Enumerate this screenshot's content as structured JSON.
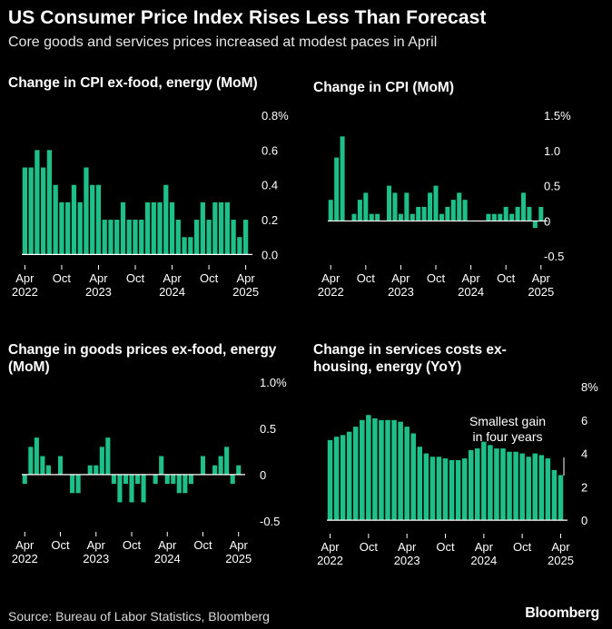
{
  "header": {
    "title": "US Consumer Price Index Rises Less Than Forecast",
    "subtitle": "Core goods and services prices increased at modest paces in April"
  },
  "footer": {
    "source": "Source: Bureau of Labor Statistics, Bloomberg",
    "brand": "Bloomberg"
  },
  "colors": {
    "bar": "#1ec089",
    "background": "#000000",
    "text": "#ffffff",
    "tick": "#ffffff"
  },
  "x_tick_labels": [
    {
      "index": 0,
      "top": "Apr",
      "bottom": "2022"
    },
    {
      "index": 6,
      "top": "Oct",
      "bottom": ""
    },
    {
      "index": 12,
      "top": "Apr",
      "bottom": "2023"
    },
    {
      "index": 18,
      "top": "Oct",
      "bottom": ""
    },
    {
      "index": 24,
      "top": "Apr",
      "bottom": "2024"
    },
    {
      "index": 30,
      "top": "Oct",
      "bottom": ""
    },
    {
      "index": 36,
      "top": "Apr",
      "bottom": "2025"
    }
  ],
  "chart_data": [
    {
      "id": "core-cpi",
      "type": "bar",
      "title": "Change in CPI ex-food, energy (MoM)",
      "categories_start": "2022-04",
      "categories_end": "2025-04",
      "y_ticks": [
        {
          "v": 0.8,
          "label": "0.8%"
        },
        {
          "v": 0.6,
          "label": "0.6"
        },
        {
          "v": 0.4,
          "label": "0.4"
        },
        {
          "v": 0.2,
          "label": "0.2"
        },
        {
          "v": 0.0,
          "label": "0.0"
        }
      ],
      "ylim": [
        -0.05,
        0.8
      ],
      "values": [
        0.5,
        0.5,
        0.6,
        0.5,
        0.6,
        0.4,
        0.3,
        0.3,
        0.4,
        0.3,
        0.5,
        0.4,
        0.4,
        0.2,
        0.2,
        0.2,
        0.3,
        0.2,
        0.2,
        0.2,
        0.3,
        0.3,
        0.3,
        0.4,
        0.3,
        0.2,
        0.1,
        0.1,
        0.2,
        0.3,
        0.2,
        0.3,
        0.3,
        0.3,
        0.2,
        0.1,
        0.2
      ],
      "annotations": []
    },
    {
      "id": "headline-cpi",
      "type": "bar",
      "title": "Change in CPI (MoM)",
      "categories_start": "2022-04",
      "categories_end": "2025-04",
      "y_ticks": [
        {
          "v": 1.5,
          "label": "1.5%"
        },
        {
          "v": 1.0,
          "label": "1.0"
        },
        {
          "v": 0.5,
          "label": "0.5"
        },
        {
          "v": 0,
          "label": "0"
        },
        {
          "v": -0.5,
          "label": "-0.5"
        }
      ],
      "ylim": [
        -0.6,
        1.5
      ],
      "values": [
        0.3,
        0.9,
        1.2,
        0.0,
        0.1,
        0.3,
        0.4,
        0.1,
        0.1,
        0.0,
        0.5,
        0.4,
        0.1,
        0.4,
        0.1,
        0.2,
        0.2,
        0.4,
        0.5,
        0.1,
        0.2,
        0.3,
        0.4,
        0.3,
        0.0,
        0.0,
        0.0,
        0.1,
        0.1,
        0.1,
        0.2,
        0.1,
        0.2,
        0.4,
        0.2,
        -0.1,
        0.2
      ],
      "annotations": []
    },
    {
      "id": "core-goods",
      "type": "bar",
      "title": "Change in goods prices ex-food, energy (MoM)",
      "categories_start": "2022-04",
      "categories_end": "2025-04",
      "y_ticks": [
        {
          "v": 1.0,
          "label": "1.0%"
        },
        {
          "v": 0.5,
          "label": "0.5"
        },
        {
          "v": 0,
          "label": "0"
        },
        {
          "v": -0.5,
          "label": "-0.5"
        }
      ],
      "ylim": [
        -0.6,
        1.0
      ],
      "values": [
        -0.1,
        0.3,
        0.4,
        0.2,
        0.1,
        0.0,
        0.2,
        0.0,
        -0.2,
        -0.2,
        0.0,
        0.1,
        0.1,
        0.3,
        0.4,
        -0.1,
        -0.3,
        -0.1,
        -0.3,
        -0.1,
        -0.3,
        0.0,
        -0.1,
        0.2,
        -0.1,
        -0.1,
        -0.2,
        -0.2,
        -0.1,
        0.0,
        0.2,
        0.0,
        0.1,
        0.2,
        0.3,
        -0.1,
        0.1
      ],
      "annotations": []
    },
    {
      "id": "services-ex-housing",
      "type": "bar",
      "title": "Change in services costs ex-housing, energy (YoY)",
      "categories_start": "2022-04",
      "categories_end": "2025-04",
      "y_ticks": [
        {
          "v": 8,
          "label": "8%"
        },
        {
          "v": 6,
          "label": "6"
        },
        {
          "v": 4,
          "label": "4"
        },
        {
          "v": 2,
          "label": "2"
        },
        {
          "v": 0,
          "label": "0"
        }
      ],
      "ylim": [
        -0.7,
        8
      ],
      "values": [
        4.8,
        5.0,
        5.1,
        5.3,
        5.6,
        6.0,
        6.3,
        6.1,
        6.0,
        6.0,
        6.0,
        5.9,
        5.6,
        5.2,
        4.4,
        4.0,
        3.8,
        3.8,
        3.7,
        3.6,
        3.6,
        3.7,
        4.2,
        4.3,
        4.7,
        4.5,
        4.3,
        4.3,
        4.1,
        4.1,
        4.0,
        3.8,
        4.0,
        3.9,
        3.7,
        3.0,
        2.7
      ],
      "annotations": [
        {
          "text_lines": [
            "Smallest gain",
            "in four years"
          ]
        }
      ]
    }
  ]
}
